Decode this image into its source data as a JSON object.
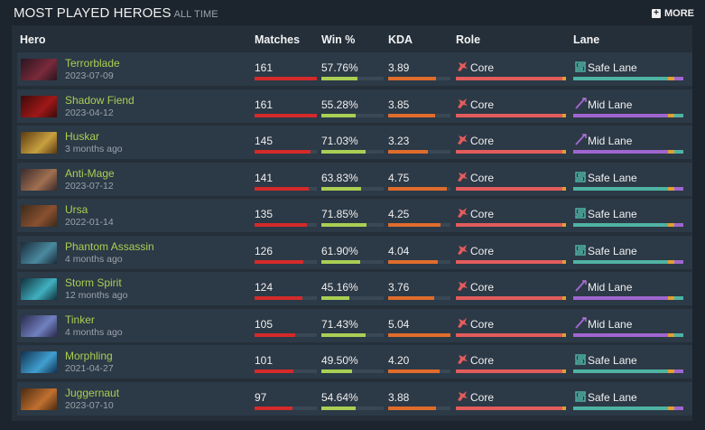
{
  "header": {
    "title": "MOST PLAYED HEROES",
    "subtitle": "ALL TIME",
    "more_label": "MORE"
  },
  "columns": {
    "hero": "Hero",
    "matches": "Matches",
    "winrate": "Win %",
    "kda": "KDA",
    "role": "Role",
    "lane": "Lane"
  },
  "colors": {
    "matches_bar": "#d42a2a",
    "winrate_bar": "#a9cf54",
    "kda_bar": "#e06c2c",
    "role_bar": "#e25c5c",
    "safe_lane": "#4fb3a3",
    "mid_lane": "#a066d0",
    "hero_name": "#a9cf54"
  },
  "heroes": [
    {
      "name": "Terrorblade",
      "date": "2023-07-09",
      "matches": "161",
      "winrate": "57.76%",
      "kda": "3.89",
      "role": "Core",
      "lane": "Safe Lane",
      "lane_type": "safe",
      "avatar": [
        "#2a1520",
        "#7a2a3a"
      ],
      "matches_frac": 1.0,
      "win_frac": 0.5776,
      "kda_frac": 0.77
    },
    {
      "name": "Shadow Fiend",
      "date": "2023-04-12",
      "matches": "161",
      "winrate": "55.28%",
      "kda": "3.85",
      "role": "Core",
      "lane": "Mid Lane",
      "lane_type": "mid",
      "avatar": [
        "#3a0a0a",
        "#a01818"
      ],
      "matches_frac": 1.0,
      "win_frac": 0.5528,
      "kda_frac": 0.76
    },
    {
      "name": "Huskar",
      "date": "3 months ago",
      "matches": "145",
      "winrate": "71.03%",
      "kda": "3.23",
      "role": "Core",
      "lane": "Mid Lane",
      "lane_type": "mid",
      "avatar": [
        "#5a3a10",
        "#c8a040"
      ],
      "matches_frac": 0.9,
      "win_frac": 0.7103,
      "kda_frac": 0.64
    },
    {
      "name": "Anti-Mage",
      "date": "2023-07-12",
      "matches": "141",
      "winrate": "63.83%",
      "kda": "4.75",
      "role": "Core",
      "lane": "Safe Lane",
      "lane_type": "safe",
      "avatar": [
        "#3a2a2a",
        "#a07050"
      ],
      "matches_frac": 0.876,
      "win_frac": 0.6383,
      "kda_frac": 0.94
    },
    {
      "name": "Ursa",
      "date": "2022-01-14",
      "matches": "135",
      "winrate": "71.85%",
      "kda": "4.25",
      "role": "Core",
      "lane": "Safe Lane",
      "lane_type": "safe",
      "avatar": [
        "#3a2a1a",
        "#8a5030"
      ],
      "matches_frac": 0.838,
      "win_frac": 0.7185,
      "kda_frac": 0.84
    },
    {
      "name": "Phantom Assassin",
      "date": "4 months ago",
      "matches": "126",
      "winrate": "61.90%",
      "kda": "4.04",
      "role": "Core",
      "lane": "Safe Lane",
      "lane_type": "safe",
      "avatar": [
        "#1a2a3a",
        "#4a8aa0"
      ],
      "matches_frac": 0.783,
      "win_frac": 0.619,
      "kda_frac": 0.8
    },
    {
      "name": "Storm Spirit",
      "date": "12 months ago",
      "matches": "124",
      "winrate": "45.16%",
      "kda": "3.76",
      "role": "Core",
      "lane": "Mid Lane",
      "lane_type": "mid",
      "avatar": [
        "#10303a",
        "#40b0c0"
      ],
      "matches_frac": 0.77,
      "win_frac": 0.4516,
      "kda_frac": 0.74
    },
    {
      "name": "Tinker",
      "date": "4 months ago",
      "matches": "105",
      "winrate": "71.43%",
      "kda": "5.04",
      "role": "Core",
      "lane": "Mid Lane",
      "lane_type": "mid",
      "avatar": [
        "#2a2a4a",
        "#7080c0"
      ],
      "matches_frac": 0.652,
      "win_frac": 0.7143,
      "kda_frac": 1.0
    },
    {
      "name": "Morphling",
      "date": "2021-04-27",
      "matches": "101",
      "winrate": "49.50%",
      "kda": "4.20",
      "role": "Core",
      "lane": "Safe Lane",
      "lane_type": "safe",
      "avatar": [
        "#103050",
        "#40a0d0"
      ],
      "matches_frac": 0.627,
      "win_frac": 0.495,
      "kda_frac": 0.83
    },
    {
      "name": "Juggernaut",
      "date": "2023-07-10",
      "matches": "97",
      "winrate": "54.64%",
      "kda": "3.88",
      "role": "Core",
      "lane": "Safe Lane",
      "lane_type": "safe",
      "avatar": [
        "#4a2a10",
        "#c07030"
      ],
      "matches_frac": 0.602,
      "win_frac": 0.5464,
      "kda_frac": 0.77
    }
  ]
}
